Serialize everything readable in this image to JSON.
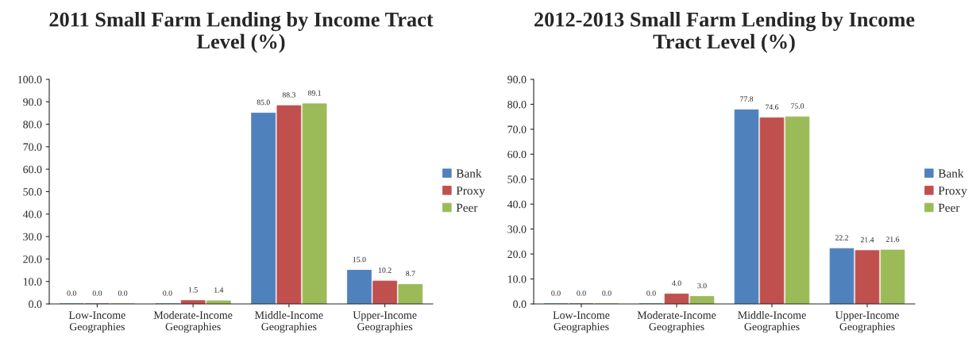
{
  "chart_data": [
    {
      "type": "bar",
      "title": "2011 Small Farm Lending by Income Tract\nLevel (%)",
      "categories": [
        "Low-Income\nGeographies",
        "Moderate-Income\nGeographies",
        "Middle-Income\nGeographies",
        "Upper-Income\nGeographies"
      ],
      "series": [
        {
          "name": "Bank",
          "color": "#4f81bd",
          "values": [
            0.0,
            0.0,
            85.0,
            15.0
          ],
          "value_labels": [
            "0.0",
            "0.0",
            "85.0",
            "15.0"
          ]
        },
        {
          "name": "Proxy",
          "color": "#c0504d",
          "values": [
            0.0,
            1.5,
            88.3,
            10.2
          ],
          "value_labels": [
            "0.0",
            "1.5",
            "88.3",
            "10.2"
          ]
        },
        {
          "name": "Peer",
          "color": "#9bbb59",
          "values": [
            0.0,
            1.4,
            89.1,
            8.7
          ],
          "value_labels": [
            "0.0",
            "1.4",
            "89.1",
            "8.7"
          ]
        }
      ],
      "ylim": [
        0,
        100
      ],
      "yticks": [
        {
          "value": 0,
          "label": "0.0"
        },
        {
          "value": 10,
          "label": "10.0"
        },
        {
          "value": 20,
          "label": "20.0"
        },
        {
          "value": 30,
          "label": "30.0"
        },
        {
          "value": 40,
          "label": "40.0"
        },
        {
          "value": 50,
          "label": "50.0"
        },
        {
          "value": 60,
          "label": "60.0"
        },
        {
          "value": 70,
          "label": "70.0"
        },
        {
          "value": 80,
          "label": "80.0"
        },
        {
          "value": 90,
          "label": "90.0"
        },
        {
          "value": 100,
          "label": "100.0"
        }
      ],
      "legend": "right"
    },
    {
      "type": "bar",
      "title": "2012-2013 Small Farm Lending by Income\nTract Level (%)",
      "categories": [
        "Low-Income\nGeographies",
        "Moderate-Income\nGeographies",
        "Middle-Income\nGeographies",
        "Upper-Income\nGeographies"
      ],
      "series": [
        {
          "name": "Bank",
          "color": "#4f81bd",
          "values": [
            0.0,
            0.0,
            77.8,
            22.2
          ],
          "value_labels": [
            "0.0",
            "0.0",
            "77.8",
            "22.2"
          ]
        },
        {
          "name": "Proxy",
          "color": "#c0504d",
          "values": [
            0.0,
            4.0,
            74.6,
            21.4
          ],
          "value_labels": [
            "0.0",
            "4.0",
            "74.6",
            "21.4"
          ]
        },
        {
          "name": "Peer",
          "color": "#9bbb59",
          "values": [
            0.0,
            3.0,
            75.0,
            21.6
          ],
          "value_labels": [
            "0.0",
            "3.0",
            "75.0",
            "21.6"
          ]
        }
      ],
      "ylim": [
        0,
        90
      ],
      "yticks": [
        {
          "value": 0,
          "label": "0.0"
        },
        {
          "value": 10,
          "label": "10.0"
        },
        {
          "value": 20,
          "label": "20.0"
        },
        {
          "value": 30,
          "label": "30.0"
        },
        {
          "value": 40,
          "label": "40.0"
        },
        {
          "value": 50,
          "label": "50.0"
        },
        {
          "value": 60,
          "label": "60.0"
        },
        {
          "value": 70,
          "label": "70.0"
        },
        {
          "value": 80,
          "label": "80.0"
        },
        {
          "value": 90,
          "label": "90.0"
        }
      ],
      "legend": "right"
    }
  ]
}
